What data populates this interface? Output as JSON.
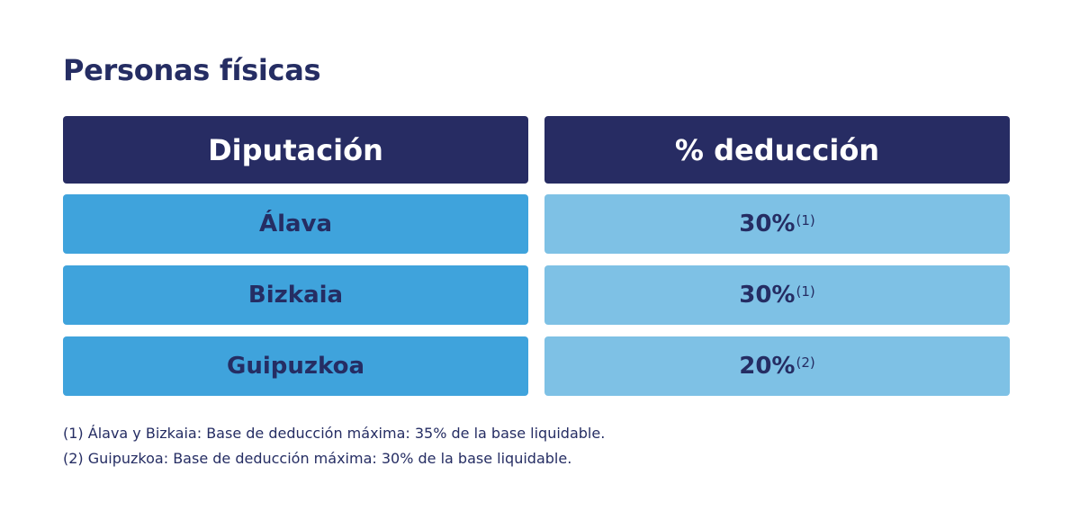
{
  "title": "Personas físicas",
  "table": {
    "headers": [
      "Diputación",
      "% deducción"
    ],
    "rows": [
      {
        "region": "Álava",
        "value": "30%",
        "note": "(1)"
      },
      {
        "region": "Bizkaia",
        "value": "30%",
        "note": "(1)"
      },
      {
        "region": "Guipuzkoa",
        "value": "20%",
        "note": "(2)"
      }
    ]
  },
  "footnotes": [
    "(1) Álava y Bizkaia: Base de deducción máxima: 35% de la base liquidable.",
    "(2) Guipuzkoa: Base de deducción máxima: 30% de la base liquidable."
  ],
  "colors": {
    "header_bg": "#272c63",
    "region_bg": "#3fa3dc",
    "value_bg": "#7ec1e5",
    "text": "#252d63"
  }
}
